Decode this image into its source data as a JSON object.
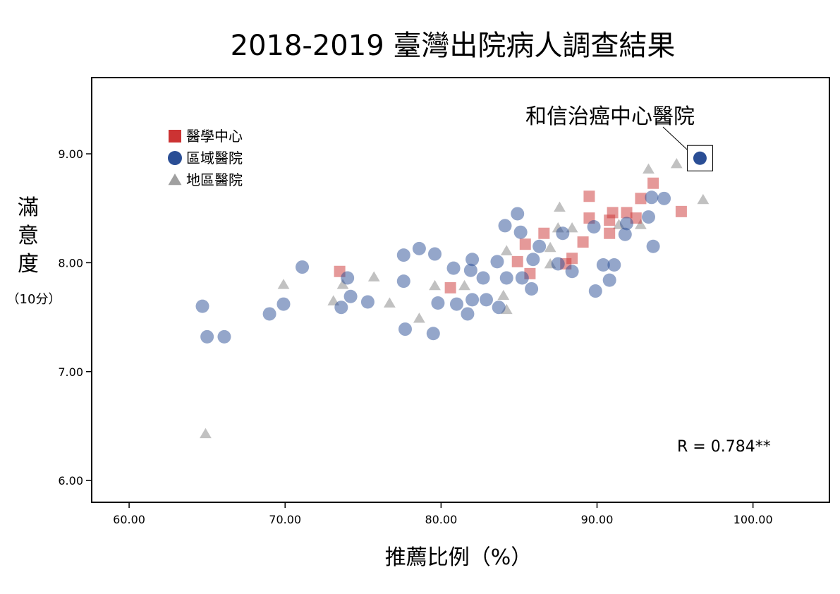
{
  "chart_data": {
    "type": "scatter",
    "title": "2018-2019 臺灣出院病人調查結果",
    "xlabel": "推薦比例（%）",
    "ylabel": "滿意度",
    "ylabel_unit": "（10分）",
    "xlim": [
      57.6,
      104.9
    ],
    "ylim": [
      5.8,
      9.7
    ],
    "xticks": [
      60,
      70,
      80,
      90,
      100
    ],
    "xtick_labels": [
      "60.00",
      "70.00",
      "80.00",
      "90.00",
      "100.00"
    ],
    "yticks": [
      6,
      7,
      8,
      9
    ],
    "ytick_labels": [
      "6.00",
      "7.00",
      "8.00",
      "9.00"
    ],
    "grid": false,
    "legend_position": "top-left",
    "annotation": {
      "text": "和信治癌中心醫院",
      "x": 96.6,
      "y": 8.96
    },
    "correlation_text": "R = 0.784**",
    "series": [
      {
        "name": "醫學中心",
        "marker": "square",
        "color": "#cc3333",
        "points": [
          [
            73.5,
            7.92
          ],
          [
            80.6,
            7.77
          ],
          [
            84.9,
            8.01
          ],
          [
            85.4,
            8.17
          ],
          [
            85.7,
            7.9
          ],
          [
            86.6,
            8.27
          ],
          [
            88.0,
            7.99
          ],
          [
            88.4,
            8.04
          ],
          [
            89.1,
            8.19
          ],
          [
            89.5,
            8.61
          ],
          [
            89.5,
            8.41
          ],
          [
            90.8,
            8.27
          ],
          [
            90.8,
            8.39
          ],
          [
            91.0,
            8.46
          ],
          [
            91.9,
            8.46
          ],
          [
            92.5,
            8.41
          ],
          [
            92.8,
            8.59
          ],
          [
            93.6,
            8.73
          ],
          [
            95.4,
            8.47
          ]
        ]
      },
      {
        "name": "區域醫院",
        "marker": "circle",
        "color": "#2a4e95",
        "points": [
          [
            64.7,
            7.6
          ],
          [
            65.0,
            7.32
          ],
          [
            66.1,
            7.32
          ],
          [
            69.0,
            7.53
          ],
          [
            69.9,
            7.62
          ],
          [
            71.1,
            7.96
          ],
          [
            73.6,
            7.59
          ],
          [
            74.0,
            7.86
          ],
          [
            74.2,
            7.69
          ],
          [
            75.3,
            7.64
          ],
          [
            77.6,
            8.07
          ],
          [
            77.6,
            7.83
          ],
          [
            77.7,
            7.39
          ],
          [
            78.6,
            8.13
          ],
          [
            79.5,
            7.35
          ],
          [
            79.6,
            8.08
          ],
          [
            79.8,
            7.63
          ],
          [
            80.8,
            7.95
          ],
          [
            81.0,
            7.62
          ],
          [
            81.7,
            7.53
          ],
          [
            81.9,
            7.93
          ],
          [
            82.0,
            8.03
          ],
          [
            82.0,
            7.66
          ],
          [
            82.7,
            7.86
          ],
          [
            82.9,
            7.66
          ],
          [
            83.6,
            8.01
          ],
          [
            83.7,
            7.59
          ],
          [
            84.1,
            8.34
          ],
          [
            84.2,
            7.86
          ],
          [
            84.9,
            8.45
          ],
          [
            85.1,
            8.28
          ],
          [
            85.2,
            7.86
          ],
          [
            85.8,
            7.76
          ],
          [
            85.9,
            8.03
          ],
          [
            86.3,
            8.15
          ],
          [
            87.5,
            7.99
          ],
          [
            87.8,
            8.27
          ],
          [
            88.4,
            7.92
          ],
          [
            89.8,
            8.33
          ],
          [
            89.9,
            7.74
          ],
          [
            90.4,
            7.98
          ],
          [
            90.8,
            7.84
          ],
          [
            91.1,
            7.98
          ],
          [
            91.8,
            8.26
          ],
          [
            91.9,
            8.36
          ],
          [
            93.3,
            8.42
          ],
          [
            93.5,
            8.6
          ],
          [
            93.6,
            8.15
          ],
          [
            94.3,
            8.59
          ],
          [
            96.6,
            8.96
          ]
        ]
      },
      {
        "name": "地區醫院",
        "marker": "triangle",
        "color": "#a0a0a0",
        "points": [
          [
            64.9,
            6.43
          ],
          [
            69.9,
            7.8
          ],
          [
            73.1,
            7.65
          ],
          [
            73.7,
            7.8
          ],
          [
            75.7,
            7.87
          ],
          [
            76.7,
            7.63
          ],
          [
            78.6,
            7.49
          ],
          [
            79.6,
            7.79
          ],
          [
            81.5,
            7.79
          ],
          [
            84.0,
            7.7
          ],
          [
            84.2,
            8.11
          ],
          [
            84.2,
            7.57
          ],
          [
            87.0,
            8.14
          ],
          [
            87.0,
            7.99
          ],
          [
            87.5,
            8.32
          ],
          [
            87.6,
            8.51
          ],
          [
            88.4,
            8.32
          ],
          [
            91.4,
            8.35
          ],
          [
            92.8,
            8.35
          ],
          [
            93.3,
            8.86
          ],
          [
            95.1,
            8.91
          ],
          [
            96.8,
            8.58
          ]
        ]
      }
    ]
  }
}
